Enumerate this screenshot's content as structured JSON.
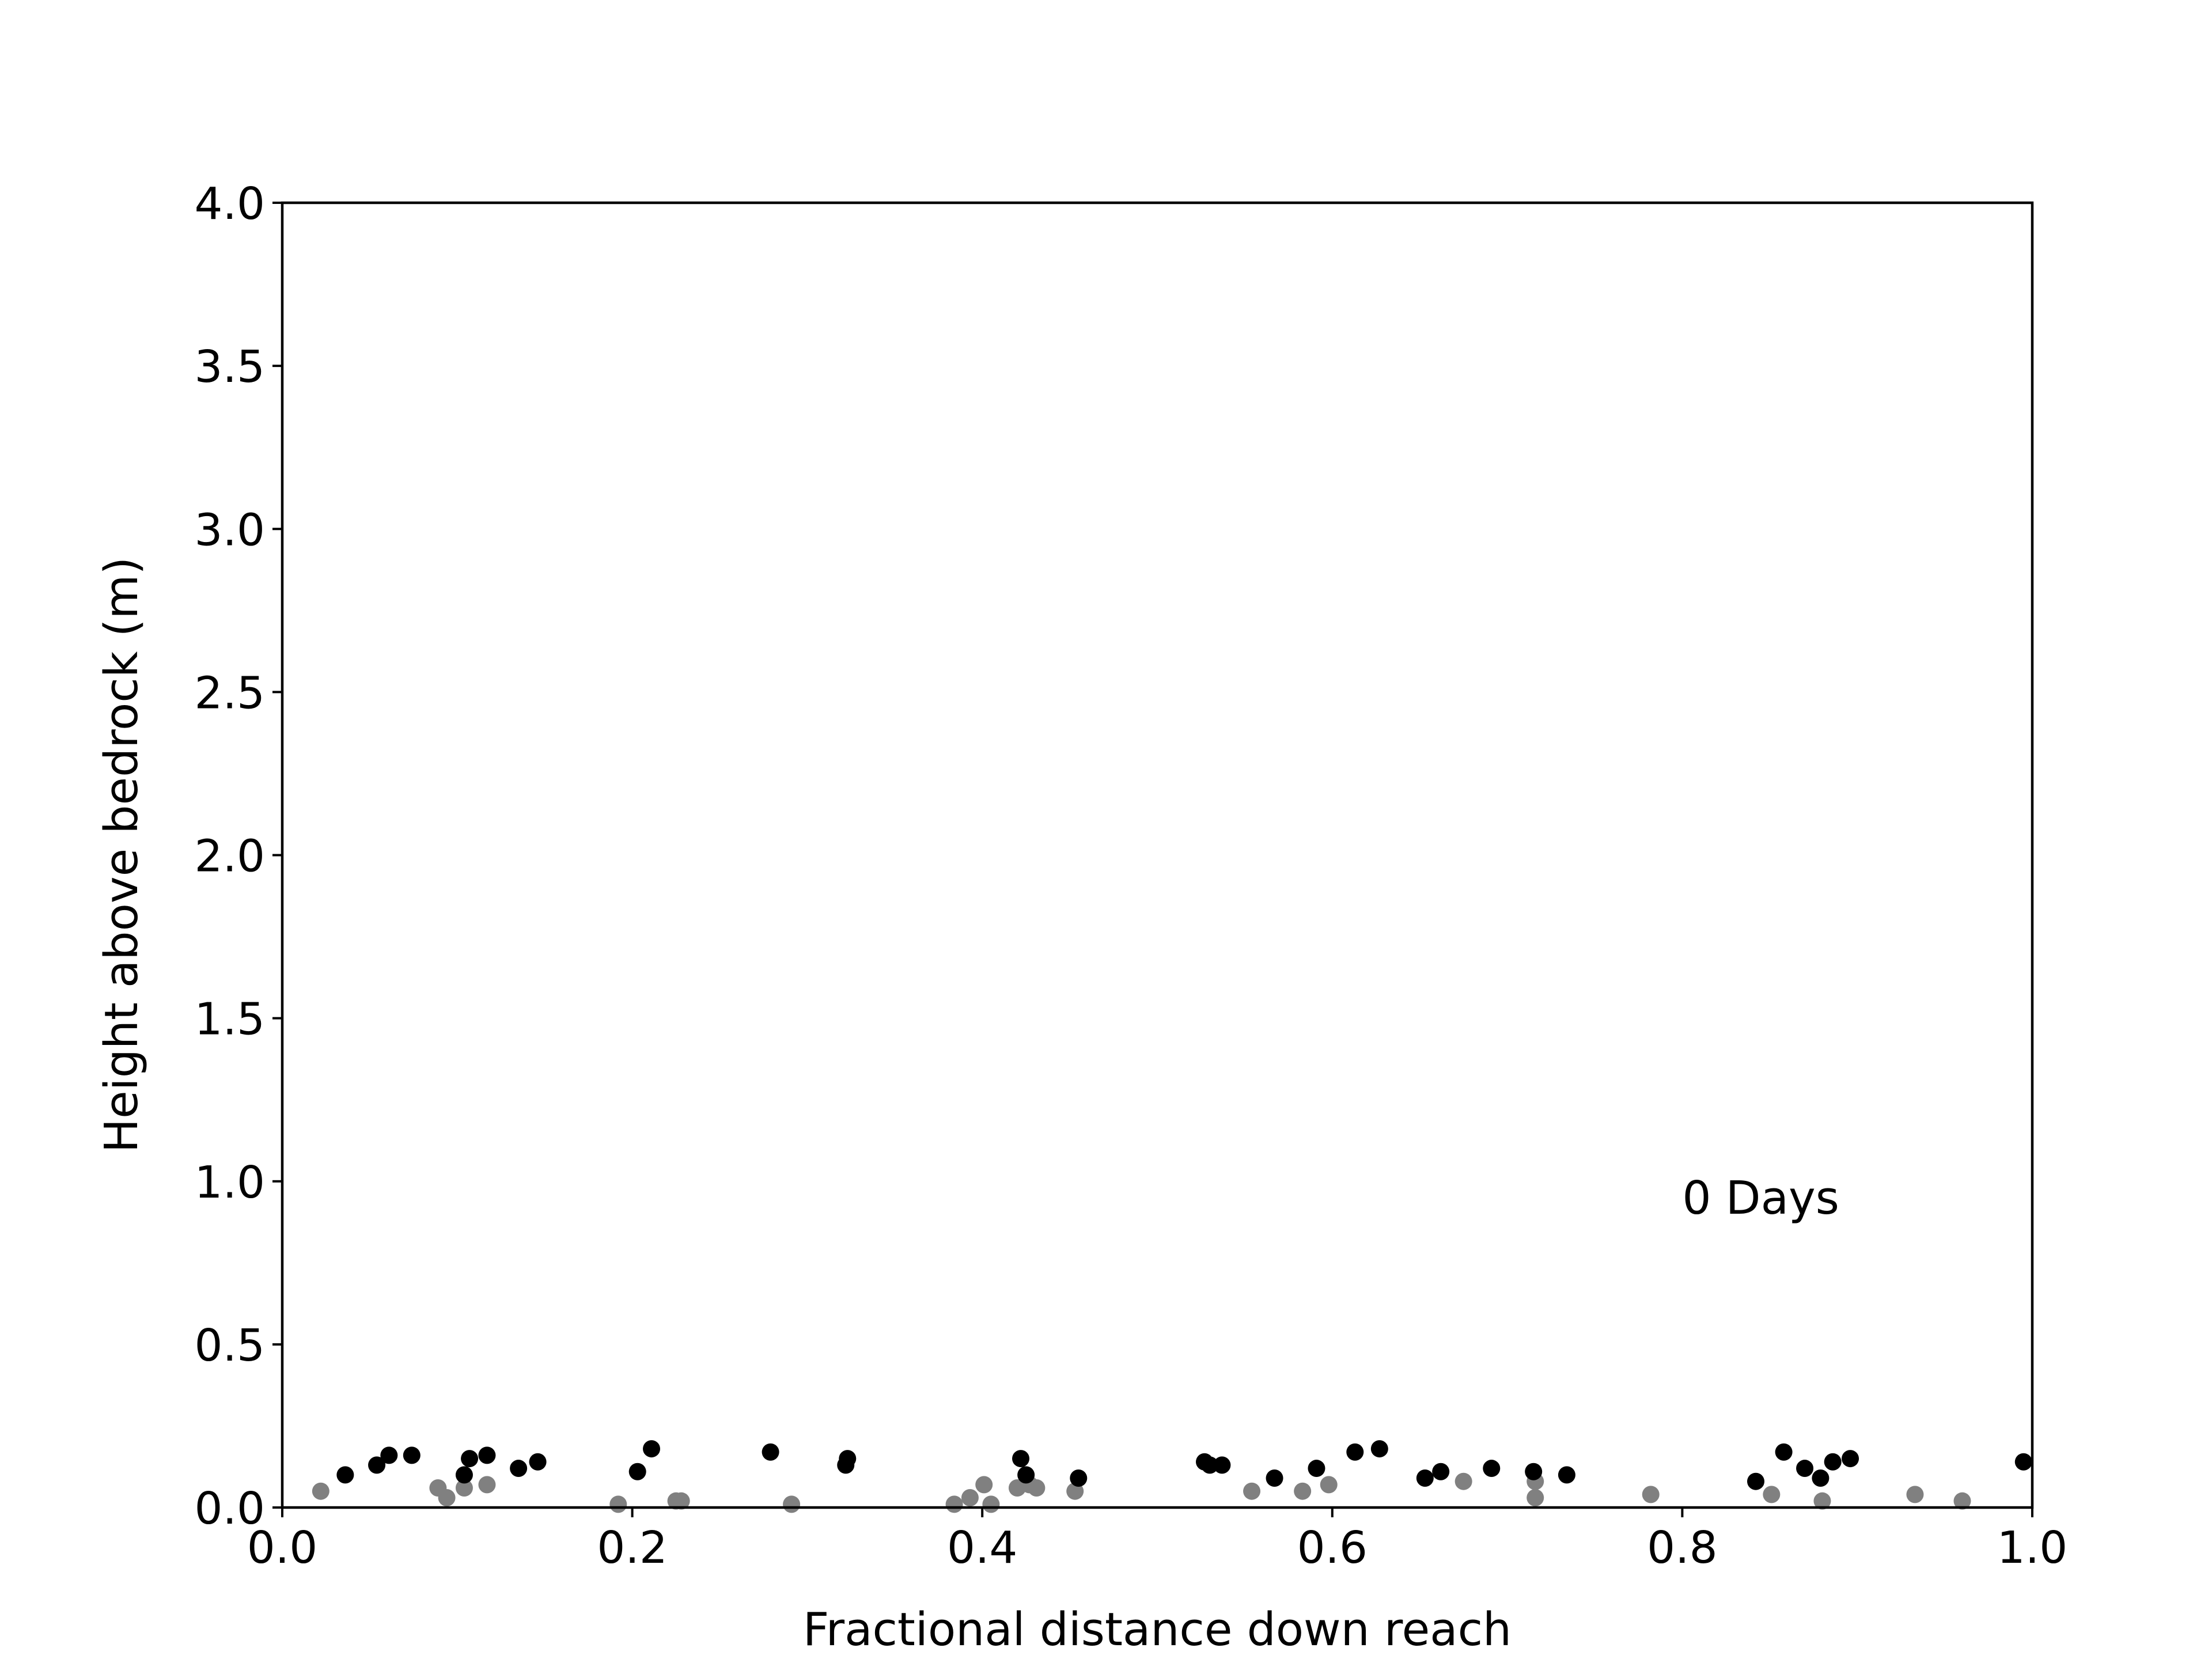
{
  "chart_data": {
    "type": "scatter",
    "title": "",
    "xlabel": "Fractional distance down reach",
    "ylabel": "Height above bedrock (m)",
    "xlim": [
      0.0,
      1.0
    ],
    "ylim": [
      0.0,
      4.0
    ],
    "xticks": [
      "0.0",
      "0.2",
      "0.4",
      "0.6",
      "0.8",
      "1.0"
    ],
    "yticks": [
      "0.0",
      "0.5",
      "1.0",
      "1.5",
      "2.0",
      "2.5",
      "3.0",
      "3.5",
      "4.0"
    ],
    "grid": false,
    "legend": "none",
    "annotation": {
      "text": "0 Days",
      "x": 0.8,
      "y": 0.95
    },
    "series": [
      {
        "color": "#000000",
        "x": [
          0.036,
          0.054,
          0.061,
          0.074,
          0.104,
          0.107,
          0.117,
          0.135,
          0.146,
          0.203,
          0.211,
          0.279,
          0.322,
          0.323,
          0.422,
          0.425,
          0.455,
          0.527,
          0.53,
          0.537,
          0.567,
          0.591,
          0.613,
          0.627,
          0.653,
          0.662,
          0.691,
          0.715,
          0.734,
          0.842,
          0.858,
          0.87,
          0.879,
          0.886,
          0.896,
          0.995
        ],
        "y": [
          0.1,
          0.13,
          0.16,
          0.16,
          0.1,
          0.15,
          0.16,
          0.12,
          0.14,
          0.11,
          0.18,
          0.17,
          0.13,
          0.15,
          0.15,
          0.1,
          0.09,
          0.14,
          0.13,
          0.13,
          0.09,
          0.12,
          0.17,
          0.18,
          0.09,
          0.11,
          0.12,
          0.11,
          0.1,
          0.08,
          0.17,
          0.12,
          0.09,
          0.14,
          0.15,
          0.14
        ]
      },
      {
        "color": "#808080",
        "x": [
          0.022,
          0.089,
          0.094,
          0.104,
          0.117,
          0.192,
          0.225,
          0.228,
          0.291,
          0.384,
          0.393,
          0.401,
          0.405,
          0.42,
          0.427,
          0.431,
          0.453,
          0.554,
          0.583,
          0.598,
          0.675,
          0.716,
          0.716,
          0.782,
          0.851,
          0.88,
          0.933,
          0.96
        ],
        "y": [
          0.05,
          0.06,
          0.03,
          0.06,
          0.07,
          0.01,
          0.02,
          0.02,
          0.01,
          0.01,
          0.03,
          0.07,
          0.01,
          0.06,
          0.07,
          0.06,
          0.05,
          0.05,
          0.05,
          0.07,
          0.08,
          0.03,
          0.08,
          0.04,
          0.04,
          0.02,
          0.04,
          0.02
        ]
      }
    ]
  }
}
